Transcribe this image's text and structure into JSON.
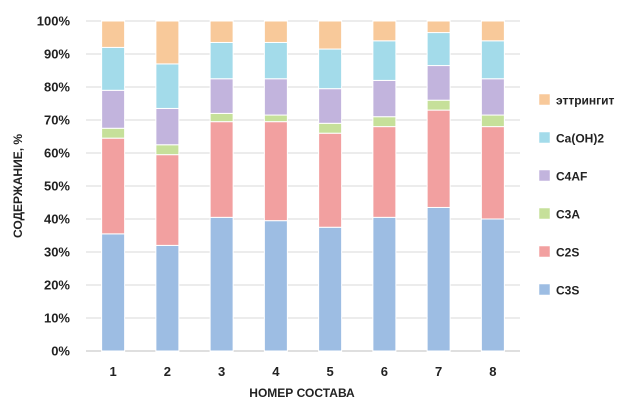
{
  "chart_data": {
    "type": "bar",
    "stacked": true,
    "percent_stacked": true,
    "xlabel": "НОМЕР СОСТАВА",
    "ylabel": "СОДЕРЖАНИЕ, %",
    "ylim": [
      0,
      100
    ],
    "y_ticks": [
      "0%",
      "10%",
      "20%",
      "30%",
      "40%",
      "50%",
      "60%",
      "70%",
      "80%",
      "90%",
      "100%"
    ],
    "categories": [
      "1",
      "2",
      "3",
      "4",
      "5",
      "6",
      "7",
      "8"
    ],
    "grid": true,
    "legend_position": "right",
    "series": [
      {
        "name": "C3S",
        "color": "#9dbde3",
        "values": [
          35.5,
          32,
          40.5,
          39.5,
          37.5,
          40.5,
          43.5,
          40
        ]
      },
      {
        "name": "C2S",
        "color": "#f2a0a0",
        "values": [
          29,
          27.5,
          29,
          30,
          28.5,
          27.5,
          29.5,
          28
        ]
      },
      {
        "name": "C3A",
        "color": "#c6e09a",
        "values": [
          3,
          3,
          2.5,
          2,
          3,
          3,
          3,
          3.5
        ]
      },
      {
        "name": "C4AF",
        "color": "#c2b4dd",
        "values": [
          11.5,
          11,
          10.5,
          11,
          10.5,
          11,
          10.5,
          11
        ]
      },
      {
        "name": "Ca(OH)2",
        "color": "#a3dbea",
        "values": [
          13,
          13.5,
          11,
          11,
          12,
          12,
          10,
          11.5
        ]
      },
      {
        "name": "эттрингит",
        "color": "#f8c99a",
        "values": [
          8,
          13,
          6.5,
          6.5,
          8.5,
          6,
          3.5,
          6
        ]
      }
    ]
  }
}
